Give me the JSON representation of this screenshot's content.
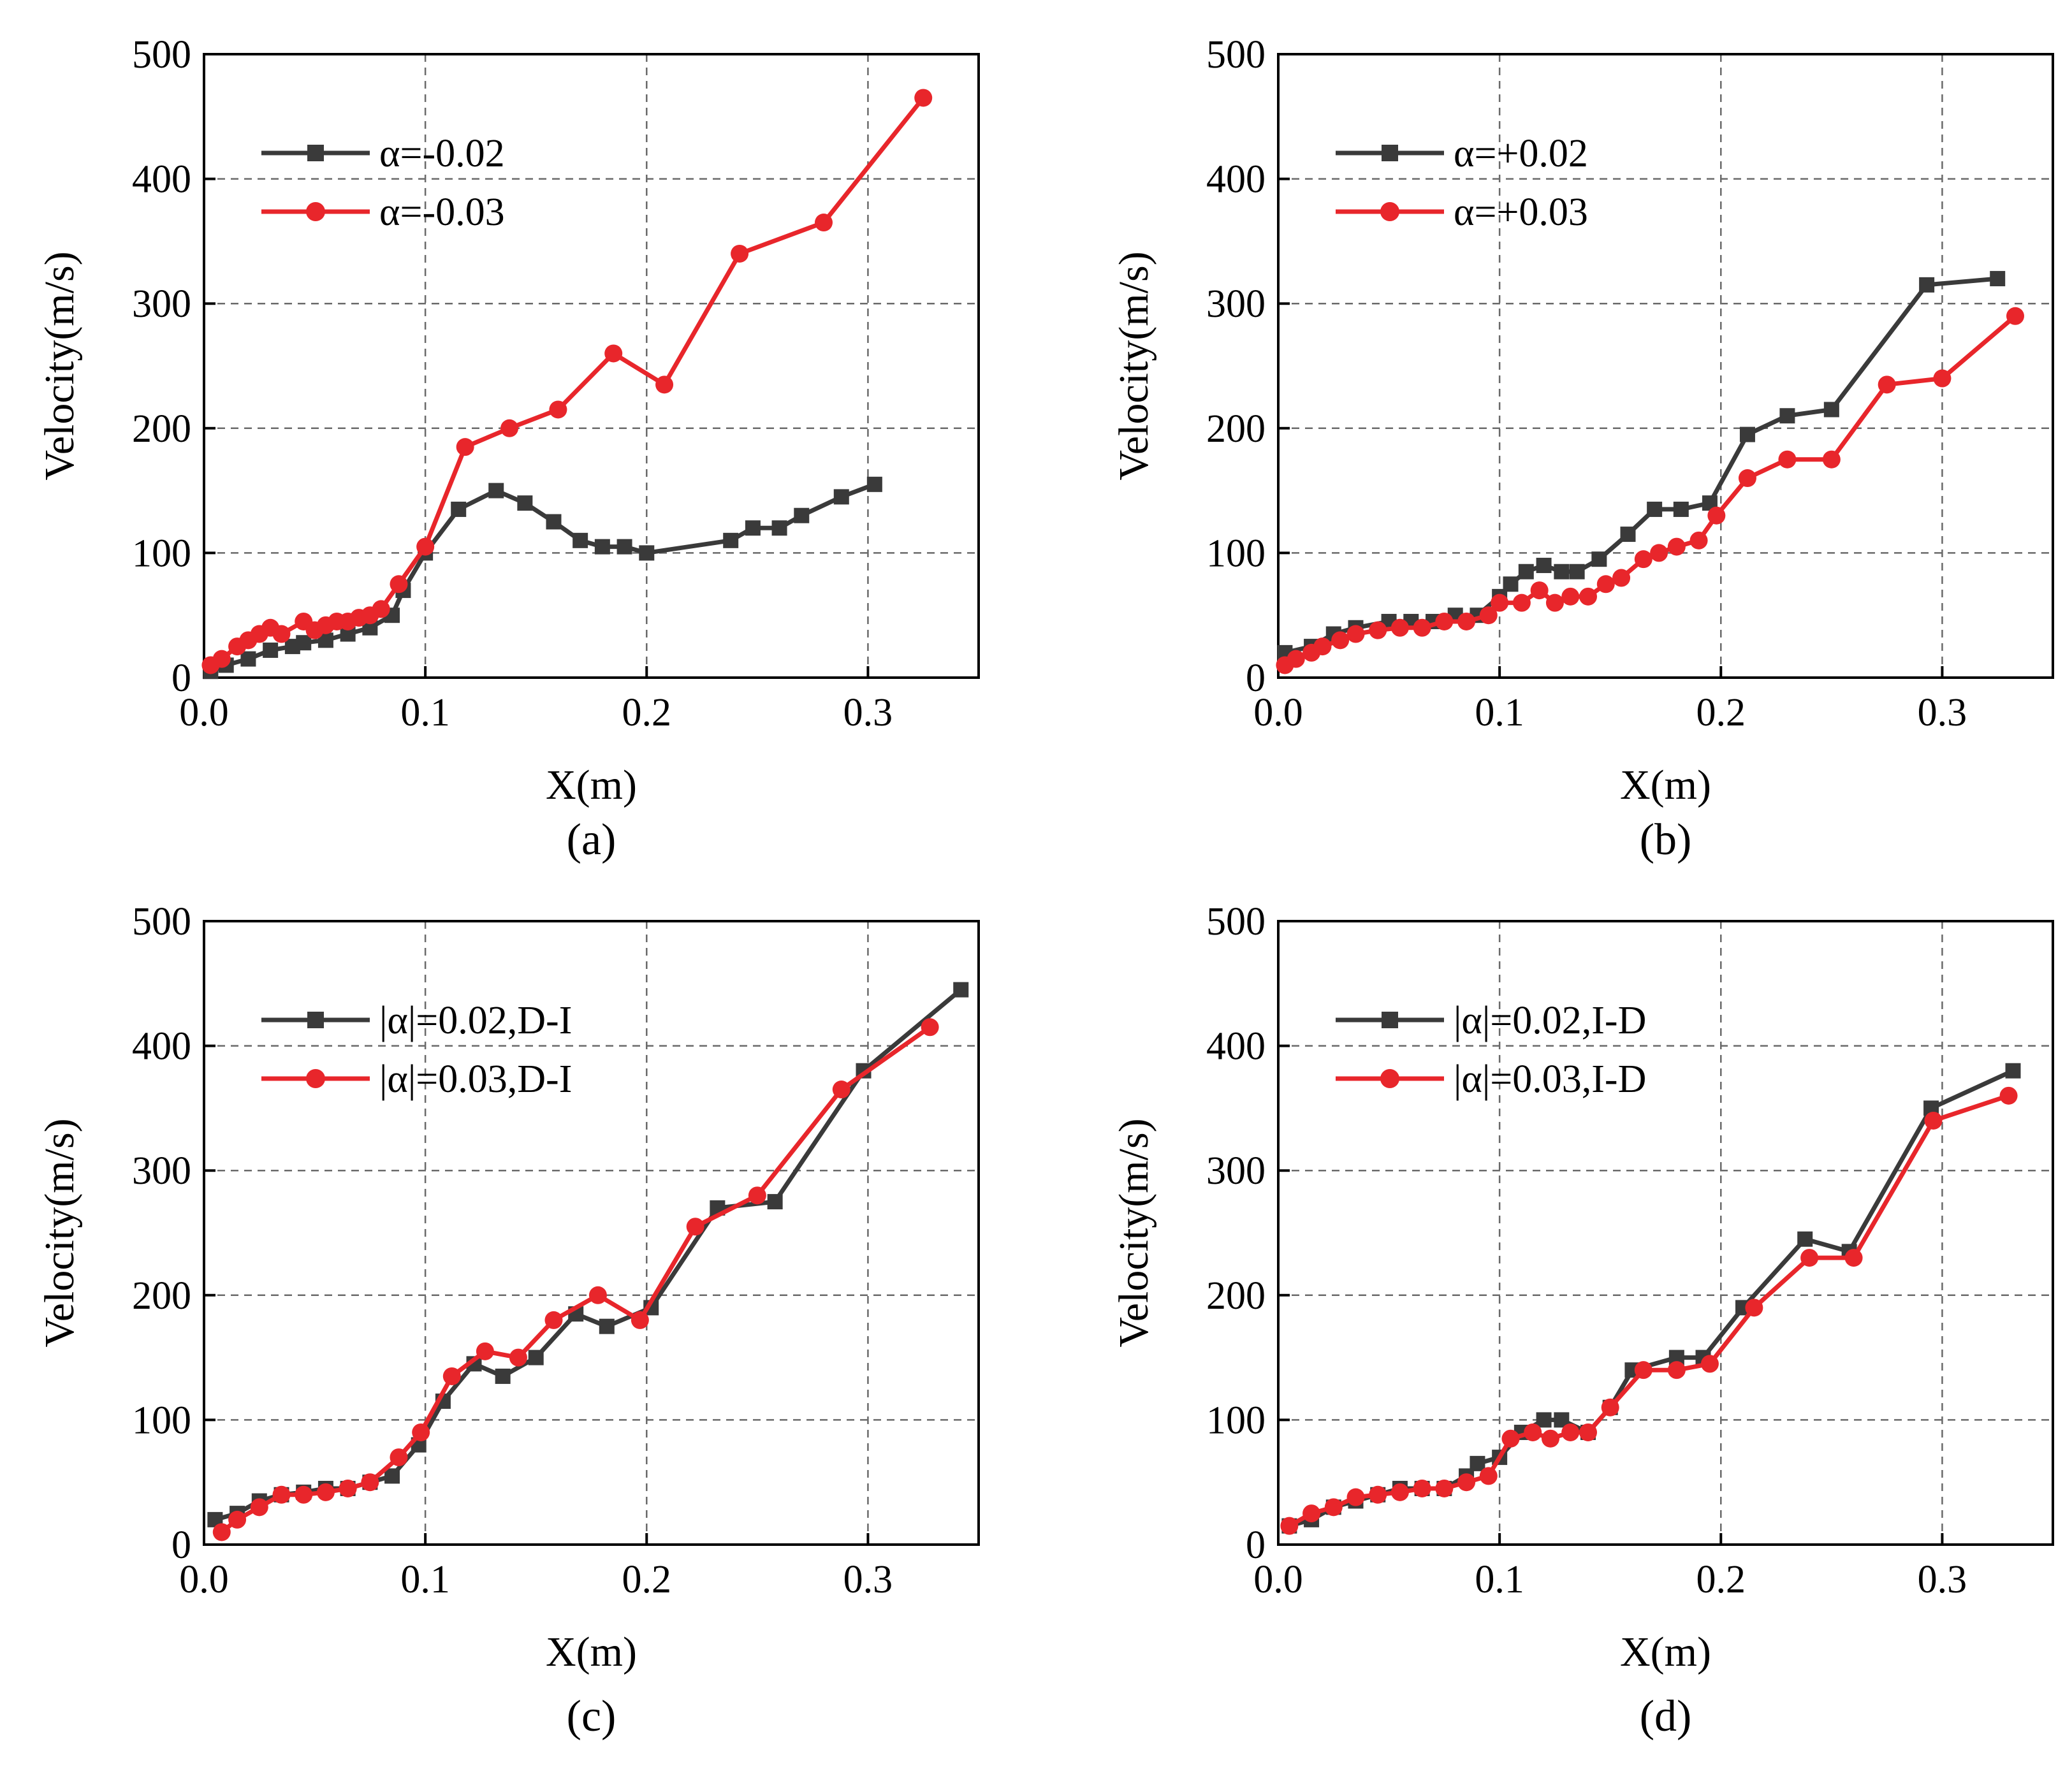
{
  "figure": {
    "panels": [
      "a",
      "b",
      "c",
      "d"
    ]
  },
  "colors": {
    "series_black": "#3a3a3a",
    "series_red": "#e8262b",
    "grid": "#6a6a6a",
    "axis": "#000000"
  },
  "chart_data": [
    {
      "type": "line",
      "caption": "(a)",
      "xlabel": "X(m)",
      "ylabel": "Velocity(m/s)",
      "xlim": [
        0,
        0.35
      ],
      "ylim": [
        0,
        500
      ],
      "xticks": [
        0.0,
        0.1,
        0.2,
        0.3
      ],
      "xtick_labels": [
        "0.0",
        "0.1",
        "0.2",
        "0.3"
      ],
      "yticks": [
        0,
        100,
        200,
        300,
        400,
        500
      ],
      "ytick_labels": [
        "0",
        "100",
        "200",
        "300",
        "400",
        "500"
      ],
      "grid": true,
      "legend_position": "top-left",
      "series": [
        {
          "name": "α=-0.02",
          "marker": "square",
          "color": "#3a3a3a",
          "x": [
            0.003,
            0.01,
            0.02,
            0.03,
            0.04,
            0.045,
            0.055,
            0.065,
            0.075,
            0.085,
            0.09,
            0.1,
            0.115,
            0.132,
            0.145,
            0.158,
            0.17,
            0.18,
            0.19,
            0.2,
            0.238,
            0.248,
            0.26,
            0.27,
            0.288,
            0.303
          ],
          "y": [
            5,
            10,
            15,
            22,
            25,
            28,
            30,
            35,
            40,
            50,
            70,
            100,
            135,
            150,
            140,
            125,
            110,
            105,
            105,
            100,
            110,
            120,
            120,
            130,
            145,
            155
          ]
        },
        {
          "name": "α=-0.03",
          "marker": "circle",
          "color": "#e8262b",
          "x": [
            0.003,
            0.008,
            0.015,
            0.02,
            0.025,
            0.03,
            0.035,
            0.045,
            0.05,
            0.055,
            0.06,
            0.065,
            0.07,
            0.075,
            0.08,
            0.088,
            0.1,
            0.118,
            0.138,
            0.16,
            0.185,
            0.208,
            0.242,
            0.28,
            0.325
          ],
          "y": [
            10,
            15,
            25,
            30,
            35,
            40,
            35,
            45,
            38,
            42,
            45,
            45,
            48,
            50,
            55,
            75,
            105,
            185,
            200,
            215,
            260,
            235,
            340,
            365,
            465
          ]
        }
      ]
    },
    {
      "type": "line",
      "caption": "(b)",
      "xlabel": "X(m)",
      "ylabel": "Velocity(m/s)",
      "xlim": [
        0,
        0.35
      ],
      "ylim": [
        0,
        500
      ],
      "xticks": [
        0.0,
        0.1,
        0.2,
        0.3
      ],
      "xtick_labels": [
        "0.0",
        "0.1",
        "0.2",
        "0.3"
      ],
      "yticks": [
        0,
        100,
        200,
        300,
        400,
        500
      ],
      "ytick_labels": [
        "0",
        "100",
        "200",
        "300",
        "400",
        "500"
      ],
      "grid": true,
      "legend_position": "top-left",
      "series": [
        {
          "name": "α=+0.02",
          "marker": "square",
          "color": "#3a3a3a",
          "x": [
            0.003,
            0.015,
            0.025,
            0.035,
            0.05,
            0.06,
            0.07,
            0.08,
            0.09,
            0.1,
            0.105,
            0.112,
            0.12,
            0.128,
            0.135,
            0.145,
            0.158,
            0.17,
            0.182,
            0.195,
            0.212,
            0.23,
            0.25,
            0.293,
            0.325
          ],
          "y": [
            20,
            25,
            35,
            40,
            45,
            45,
            45,
            50,
            50,
            65,
            75,
            85,
            90,
            85,
            85,
            95,
            115,
            135,
            135,
            140,
            195,
            210,
            215,
            315,
            320
          ]
        },
        {
          "name": "α=+0.03",
          "marker": "circle",
          "color": "#e8262b",
          "x": [
            0.003,
            0.008,
            0.015,
            0.02,
            0.028,
            0.035,
            0.045,
            0.055,
            0.065,
            0.075,
            0.085,
            0.095,
            0.1,
            0.11,
            0.118,
            0.125,
            0.132,
            0.14,
            0.148,
            0.155,
            0.165,
            0.172,
            0.18,
            0.19,
            0.198,
            0.212,
            0.23,
            0.25,
            0.275,
            0.3,
            0.333
          ],
          "y": [
            10,
            15,
            20,
            25,
            30,
            35,
            38,
            40,
            40,
            45,
            45,
            50,
            60,
            60,
            70,
            60,
            65,
            65,
            75,
            80,
            95,
            100,
            105,
            110,
            130,
            160,
            175,
            175,
            235,
            240,
            290
          ]
        }
      ]
    },
    {
      "type": "line",
      "caption": "(c)",
      "xlabel": "X(m)",
      "ylabel": "Velocity(m/s)",
      "xlim": [
        0,
        0.35
      ],
      "ylim": [
        0,
        500
      ],
      "xticks": [
        0.0,
        0.1,
        0.2,
        0.3
      ],
      "xtick_labels": [
        "0.0",
        "0.1",
        "0.2",
        "0.3"
      ],
      "yticks": [
        0,
        100,
        200,
        300,
        400,
        500
      ],
      "ytick_labels": [
        "0",
        "100",
        "200",
        "300",
        "400",
        "500"
      ],
      "grid": true,
      "legend_position": "top-left",
      "series": [
        {
          "name": "|α|=0.02,D-I",
          "marker": "square",
          "color": "#3a3a3a",
          "x": [
            0.005,
            0.015,
            0.025,
            0.035,
            0.045,
            0.055,
            0.065,
            0.075,
            0.085,
            0.097,
            0.108,
            0.122,
            0.135,
            0.15,
            0.168,
            0.182,
            0.202,
            0.232,
            0.258,
            0.298,
            0.342
          ],
          "y": [
            20,
            25,
            35,
            40,
            42,
            45,
            45,
            50,
            55,
            80,
            115,
            145,
            135,
            150,
            185,
            175,
            190,
            270,
            275,
            380,
            445
          ]
        },
        {
          "name": "|α|=0.03,D-I",
          "marker": "circle",
          "color": "#e8262b",
          "x": [
            0.008,
            0.015,
            0.025,
            0.035,
            0.045,
            0.055,
            0.065,
            0.075,
            0.088,
            0.098,
            0.112,
            0.127,
            0.142,
            0.158,
            0.178,
            0.197,
            0.222,
            0.25,
            0.288,
            0.328
          ],
          "y": [
            10,
            20,
            30,
            40,
            40,
            42,
            45,
            50,
            70,
            90,
            135,
            155,
            150,
            180,
            200,
            180,
            255,
            280,
            365,
            415
          ]
        }
      ]
    },
    {
      "type": "line",
      "caption": "(d)",
      "xlabel": "X(m)",
      "ylabel": "Velocity(m/s)",
      "xlim": [
        0,
        0.35
      ],
      "ylim": [
        0,
        500
      ],
      "xticks": [
        0.0,
        0.1,
        0.2,
        0.3
      ],
      "xtick_labels": [
        "0.0",
        "0.1",
        "0.2",
        "0.3"
      ],
      "yticks": [
        0,
        100,
        200,
        300,
        400,
        500
      ],
      "ytick_labels": [
        "0",
        "100",
        "200",
        "300",
        "400",
        "500"
      ],
      "grid": true,
      "legend_position": "top-left",
      "series": [
        {
          "name": "|α|=0.02,I-D",
          "marker": "square",
          "color": "#3a3a3a",
          "x": [
            0.005,
            0.015,
            0.025,
            0.035,
            0.045,
            0.055,
            0.065,
            0.075,
            0.085,
            0.09,
            0.1,
            0.11,
            0.12,
            0.128,
            0.14,
            0.15,
            0.16,
            0.18,
            0.192,
            0.21,
            0.238,
            0.258,
            0.295,
            0.332
          ],
          "y": [
            15,
            20,
            30,
            35,
            40,
            45,
            45,
            45,
            55,
            65,
            70,
            90,
            100,
            100,
            90,
            110,
            140,
            150,
            150,
            190,
            245,
            235,
            350,
            380
          ]
        },
        {
          "name": "|α|=0.03,I-D",
          "marker": "circle",
          "color": "#e8262b",
          "x": [
            0.005,
            0.015,
            0.025,
            0.035,
            0.045,
            0.055,
            0.065,
            0.075,
            0.085,
            0.095,
            0.105,
            0.115,
            0.123,
            0.132,
            0.14,
            0.15,
            0.165,
            0.18,
            0.195,
            0.215,
            0.24,
            0.26,
            0.296,
            0.33
          ],
          "y": [
            15,
            25,
            30,
            38,
            40,
            42,
            45,
            45,
            50,
            55,
            85,
            90,
            85,
            90,
            90,
            110,
            140,
            140,
            145,
            190,
            230,
            230,
            340,
            360
          ]
        }
      ]
    }
  ]
}
